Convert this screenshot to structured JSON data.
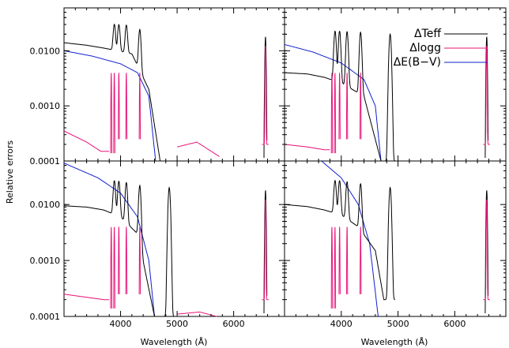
{
  "chart_data": {
    "type": "line",
    "layout": "2x2 panels, shared axes",
    "ylabel": "Relative errors",
    "xlabel": "Wavelength (Å)",
    "xlim": [
      3000,
      6900
    ],
    "ylim": [
      0.0001,
      0.06
    ],
    "yscale": "log",
    "xticks": [
      4000,
      5000,
      6000
    ],
    "xtick_labels": [
      "4000",
      "5000",
      "6000"
    ],
    "yticks": [
      0.0001,
      0.001,
      0.01
    ],
    "ytick_labels": [
      "0.0001",
      "0.0010",
      "0.0100"
    ],
    "legend": {
      "placement": "top-right (upper right panel)",
      "entries": [
        {
          "label": "ΔTeff",
          "color": "#000000"
        },
        {
          "label": "Δlogg",
          "color": "#e8157a"
        },
        {
          "label": "ΔE(B−V)",
          "color": "#1020d0"
        }
      ]
    },
    "lines": [
      4102,
      4340,
      4861,
      6563
    ],
    "panels": [
      {
        "teff": {
          "base": [
            [
              3000,
              0.014
            ],
            [
              3400,
              0.0126
            ],
            [
              3700,
              0.0112
            ],
            [
              3950,
              0.01
            ],
            [
              4200,
              0.0088
            ],
            [
              4500,
              0.002
            ],
            [
              4700,
              0.0001
            ]
          ],
          "cut": 4720
        },
        "logg": {
          "base": [
            [
              3000,
              0.00035
            ],
            [
              3400,
              0.00022
            ],
            [
              3650,
              0.00015
            ]
          ],
          "cut": 4720
        },
        "ebv": {
          "base": [
            [
              3000,
              0.01
            ],
            [
              3500,
              0.008
            ],
            [
              4000,
              0.0058
            ],
            [
              4300,
              0.004
            ],
            [
              4500,
              0.0015
            ],
            [
              4620,
              0.0001
            ]
          ]
        },
        "logg_bump": {
          "x": [
            5000,
            5350,
            5750
          ],
          "y": [
            0.00018,
            0.00022,
            0.00012
          ]
        }
      },
      {
        "teff": {
          "base": [
            [
              3000,
              0.004
            ],
            [
              3400,
              0.0038
            ],
            [
              3700,
              0.0033
            ],
            [
              4000,
              0.0026
            ],
            [
              4400,
              0.0015
            ],
            [
              4700,
              0.0001
            ]
          ],
          "cut": 4950
        },
        "logg": {
          "base": [
            [
              3000,
              0.0002
            ],
            [
              3400,
              0.00018
            ],
            [
              3700,
              0.00016
            ]
          ],
          "cut": 4400
        },
        "ebv": {
          "base": [
            [
              3000,
              0.013
            ],
            [
              3500,
              0.0095
            ],
            [
              4000,
              0.006
            ],
            [
              4400,
              0.003
            ],
            [
              4600,
              0.001
            ],
            [
              4700,
              0.0001
            ]
          ]
        }
      },
      {
        "teff": {
          "base": [
            [
              3000,
              0.0095
            ],
            [
              3400,
              0.009
            ],
            [
              3700,
              0.008
            ],
            [
              4000,
              0.006
            ],
            [
              4300,
              0.003
            ],
            [
              4600,
              0.0001
            ]
          ],
          "cut": 4950
        },
        "logg": {
          "base": [
            [
              3000,
              0.00025
            ],
            [
              3400,
              0.00022
            ],
            [
              3700,
              0.0002
            ]
          ],
          "cut": 4400
        },
        "ebv": {
          "base": [
            [
              3000,
              0.055
            ],
            [
              3600,
              0.03
            ],
            [
              4000,
              0.016
            ],
            [
              4300,
              0.006
            ],
            [
              4500,
              0.001
            ],
            [
              4600,
              0.0001
            ]
          ]
        },
        "logg_bump": {
          "x": [
            5000,
            5400,
            5700
          ],
          "y": [
            0.00011,
            0.00012,
            0.0001
          ]
        }
      },
      {
        "teff": {
          "base": [
            [
              3000,
              0.01
            ],
            [
              3400,
              0.0092
            ],
            [
              3700,
              0.008
            ],
            [
              4000,
              0.0065
            ],
            [
              4300,
              0.004
            ],
            [
              4600,
              0.0015
            ],
            [
              4750,
              0.0002
            ]
          ],
          "cut": 4950
        },
        "logg": {
          "base": [
            [
              3000,
              9e-05
            ],
            [
              3600,
              9e-05
            ]
          ],
          "cut": 4500
        },
        "ebv": {
          "base": [
            [
              3650,
              0.06
            ],
            [
              4000,
              0.03
            ],
            [
              4300,
              0.01
            ],
            [
              4500,
              0.002
            ],
            [
              4650,
              0.0001
            ]
          ]
        }
      }
    ]
  }
}
